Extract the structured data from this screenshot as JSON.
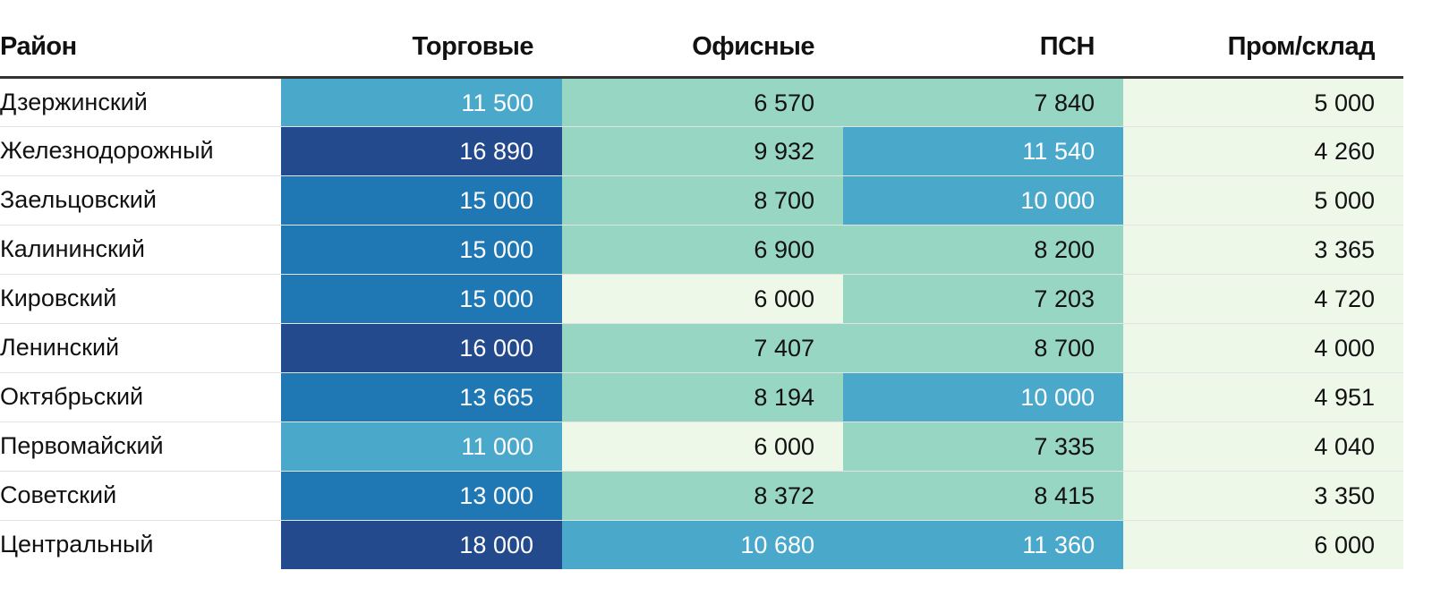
{
  "chart_data": {
    "type": "table",
    "columns": [
      "Район",
      "Торговые",
      "Офисные",
      "ПСН",
      "Пром/склад"
    ],
    "rows": [
      {
        "district": "Дзержинский",
        "values": [
          "11 500",
          "6 570",
          "7 840",
          "5 000"
        ]
      },
      {
        "district": "Железнодорожный",
        "values": [
          "16 890",
          "9 932",
          "11 540",
          "4 260"
        ]
      },
      {
        "district": "Заельцовский",
        "values": [
          "15 000",
          "8 700",
          "10 000",
          "5 000"
        ]
      },
      {
        "district": "Калининский",
        "values": [
          "15 000",
          "6 900",
          "8 200",
          "3 365"
        ]
      },
      {
        "district": "Кировский",
        "values": [
          "15 000",
          "6 000",
          "7 203",
          "4 720"
        ]
      },
      {
        "district": "Ленинский",
        "values": [
          "16 000",
          "7 407",
          "8 700",
          "4 000"
        ]
      },
      {
        "district": "Октябрьский",
        "values": [
          "13 665",
          "8 194",
          "10 000",
          "4 951"
        ]
      },
      {
        "district": "Первомайский",
        "values": [
          "11 000",
          "6 000",
          "7 335",
          "4 040"
        ]
      },
      {
        "district": "Советский",
        "values": [
          "13 000",
          "8 372",
          "8 415",
          "3 350"
        ]
      },
      {
        "district": "Центральный",
        "values": [
          "18 000",
          "10 680",
          "11 360",
          "6 000"
        ]
      }
    ],
    "color_scale": {
      "type": "threshold",
      "thresholds": [
        6500,
        10000,
        13000,
        16000
      ],
      "colors": [
        "#edf8e9",
        "#97d6c2",
        "#4aa8cb",
        "#1f77b4",
        "#234a8c"
      ],
      "text_colors": [
        "#111111",
        "#111111",
        "#ffffff",
        "#ffffff",
        "#ffffff"
      ]
    }
  }
}
